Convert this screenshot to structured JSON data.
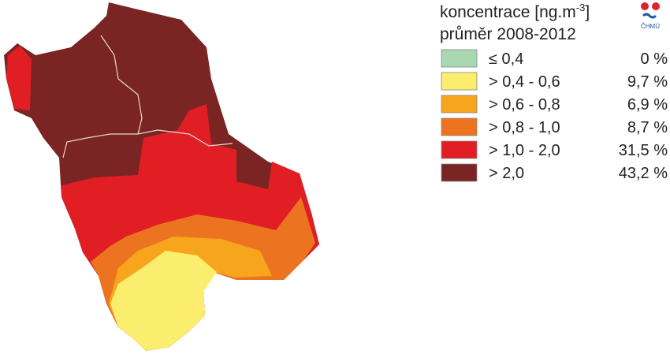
{
  "legend": {
    "title_text": "koncentrace [ng.m",
    "title_sup": "-3",
    "title_end": "]",
    "subtitle": "průměr 2008-2012",
    "items": [
      {
        "label": "≤ 0,4",
        "share": "0 %",
        "color": "#a8d8b0"
      },
      {
        "label": "> 0,4 - 0,6",
        "share": "9,7 %",
        "color": "#fbee6e"
      },
      {
        "label": "> 0,6 - 0,8",
        "share": "6,9 %",
        "color": "#f7a51c"
      },
      {
        "label": "> 0,8 - 1,0",
        "share": "8,7 %",
        "color": "#ec7420"
      },
      {
        "label": "> 1,0 - 2,0",
        "share": "31,5 %",
        "color": "#e01e24"
      },
      {
        "label": "> 2,0",
        "share": "43,2 %",
        "color": "#7a2524"
      }
    ]
  },
  "logo": {
    "text": "ČHMÚ"
  }
}
